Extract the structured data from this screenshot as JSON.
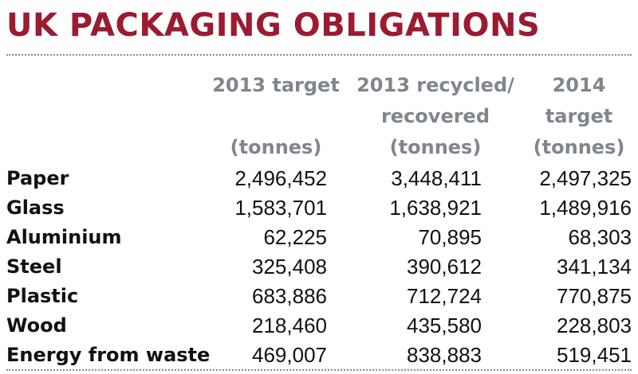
{
  "title": "UK PACKAGING OBLIGATIONS",
  "columns": {
    "target_2013": {
      "line1": "2013 target",
      "line2": "",
      "line3": "(tonnes)"
    },
    "recycled_2013": {
      "line1": "2013 recycled/",
      "line2": "recovered",
      "line3": "(tonnes)"
    },
    "target_2014": {
      "line1": "2014",
      "line2": "target",
      "line3": "(tonnes)"
    }
  },
  "rows": [
    {
      "category": "Paper",
      "target_2013": "2,496,452",
      "recycled_2013": "3,448,411",
      "target_2014": "2,497,325"
    },
    {
      "category": "Glass",
      "target_2013": "1,583,701",
      "recycled_2013": "1,638,921",
      "target_2014": "1,489,916"
    },
    {
      "category": "Aluminium",
      "target_2013": "62,225",
      "recycled_2013": "70,895",
      "target_2014": "68,303"
    },
    {
      "category": "Steel",
      "target_2013": "325,408",
      "recycled_2013": "390,612",
      "target_2014": "341,134"
    },
    {
      "category": "Plastic",
      "target_2013": "683,886",
      "recycled_2013": "712,724",
      "target_2014": "770,875"
    },
    {
      "category": "Wood",
      "target_2013": "218,460",
      "recycled_2013": "435,580",
      "target_2014": "228,803"
    },
    {
      "category": "Energy from waste",
      "target_2013": "469,007",
      "recycled_2013": "838,883",
      "target_2014": "519,451"
    }
  ],
  "colors": {
    "title": "#9b1b30",
    "header": "#7f868d",
    "body_text": "#111111",
    "rule": "#8a8a8a"
  }
}
